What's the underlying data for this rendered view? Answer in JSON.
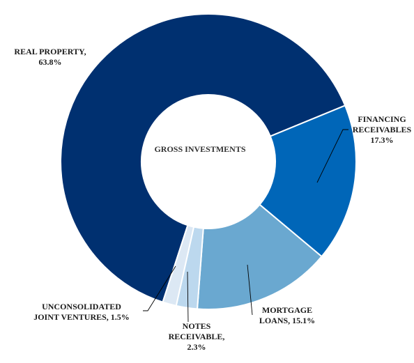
{
  "chart_data": {
    "type": "pie",
    "subtype": "donut",
    "center_label": "GROSS INVESTMENTS",
    "slices": [
      {
        "name": "REAL PROPERTY",
        "value": 63.8,
        "label_lines": [
          "REAL PROPERTY,",
          "63.8%"
        ],
        "color": "#003070"
      },
      {
        "name": "FINANCING RECEIVABLES",
        "value": 17.3,
        "label_lines": [
          "FINANCING",
          "RECEIVABLES",
          "17.3%"
        ],
        "color": "#0066b8"
      },
      {
        "name": "MORTGAGE LOANS",
        "value": 15.1,
        "label_lines": [
          "MORTGAGE",
          "LOANS, 15.1%"
        ],
        "color": "#6aa8d0"
      },
      {
        "name": "NOTES RECEIVABLE",
        "value": 2.3,
        "label_lines": [
          "NOTES",
          "RECEIVABLE,",
          "2.3%"
        ],
        "color": "#bcd8ee"
      },
      {
        "name": "UNCONSOLIDATED JOINT VENTURES",
        "value": 1.5,
        "label_lines": [
          "UNCONSOLIDATED",
          "JOINT VENTURES, 1.5%"
        ],
        "color": "#dce8f4"
      }
    ]
  }
}
